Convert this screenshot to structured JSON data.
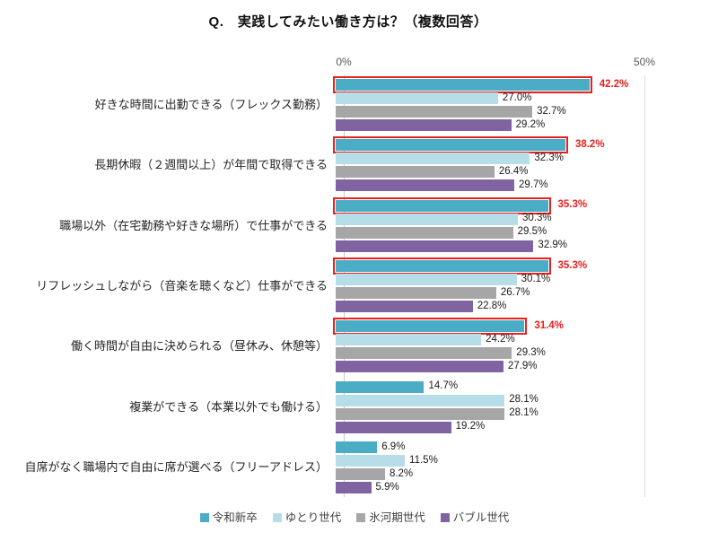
{
  "title": "Q.　実践してみたい働き方は？（複数回答）",
  "axis": {
    "tick_left": "0%",
    "tick_right": "50%"
  },
  "colors": {
    "highlight_red": "#e8201e",
    "axis_line": "#c6c6c6",
    "gridline": "#dcdcdc"
  },
  "chart_data": {
    "type": "bar",
    "orientation": "horizontal",
    "title": "Q.　実践してみたい働き方は？（複数回答）",
    "xlim": [
      0,
      50
    ],
    "x_ticks": [
      "0%",
      "50%"
    ],
    "grid": "single line at 50%",
    "legend_position": "bottom-center",
    "value_label_format": "one decimal + %",
    "categories": [
      "好きな時間に出勤できる（フレックス勤務）",
      "長期休暇（２週間以上）が年間で取得できる",
      "職場以外（在宅勤務や好きな場所）で仕事ができる",
      "リフレッシュしながら（音楽を聴くなど）仕事ができる",
      "働く時間が自由に決められる（昼休み、休憩等）",
      "複業ができる（本業以外でも働ける）",
      "自席がなく職場内で自由に席が選べる（フリーアドレス）"
    ],
    "series": [
      {
        "name": "令和新卒",
        "color": "#4bacc6",
        "values": [
          42.2,
          38.2,
          35.3,
          35.3,
          31.4,
          14.7,
          6.9
        ]
      },
      {
        "name": "ゆとり世代",
        "color": "#b7dee8",
        "values": [
          27.0,
          32.3,
          30.3,
          30.1,
          24.2,
          28.1,
          11.5
        ]
      },
      {
        "name": "氷河期世代",
        "color": "#a6a6a6",
        "values": [
          32.7,
          26.4,
          29.5,
          26.7,
          29.3,
          28.1,
          8.2
        ]
      },
      {
        "name": "バブル世代",
        "color": "#8064a2",
        "values": [
          29.2,
          29.7,
          32.9,
          22.8,
          27.9,
          19.2,
          5.9
        ]
      }
    ],
    "highlighted": {
      "series": "令和新卒",
      "category_indexes": [
        0,
        1,
        2,
        3,
        4
      ],
      "style": "red outline box on bar + red bold value label"
    }
  }
}
